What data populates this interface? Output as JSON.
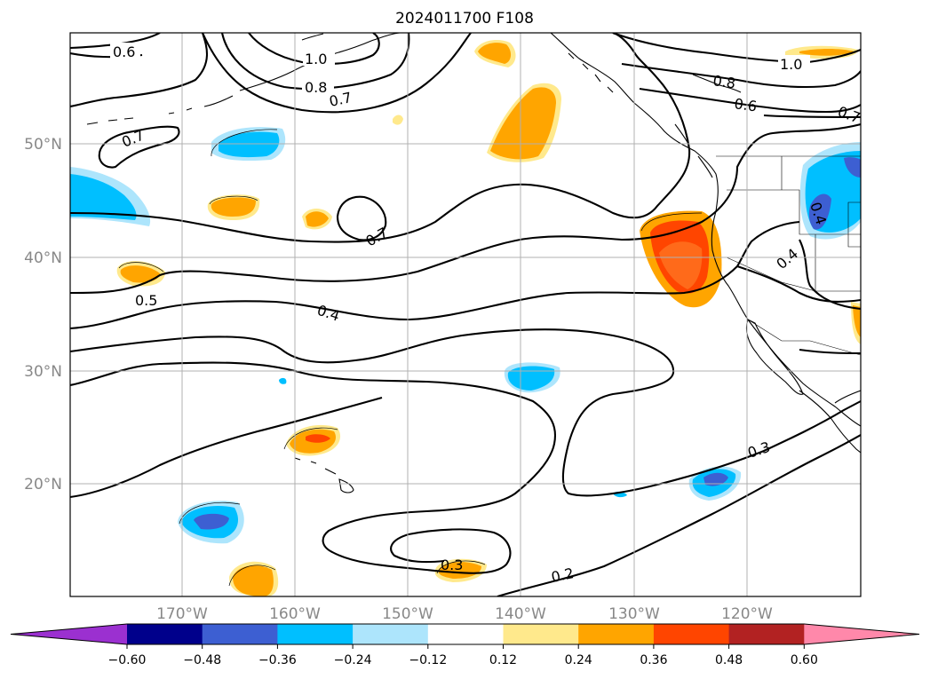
{
  "title": "2024011700 F108",
  "map": {
    "lat_labels": [
      "50°N",
      "40°N",
      "30°N",
      "20°N"
    ],
    "lon_labels": [
      "170°W",
      "160°W",
      "150°W",
      "140°W",
      "130°W",
      "120°W"
    ],
    "contour_labels": [
      "0.6",
      "1.0",
      "0.8",
      "0.7",
      "0.7",
      "0.7",
      "0.5",
      "0.4",
      "0.3",
      "0.3",
      "0.2",
      "1.0",
      "0.8",
      "0.6",
      "0.7",
      "0.4",
      "0.4"
    ]
  },
  "colorbar": {
    "ticks": [
      "−0.60",
      "−0.48",
      "−0.36",
      "−0.24",
      "−0.12",
      "0.12",
      "0.24",
      "0.36",
      "0.48",
      "0.60"
    ],
    "colors": [
      "#9b30d0",
      "#00008b",
      "#3d5fd2",
      "#00bfff",
      "#ade5fc",
      "#ffffff",
      "#ffe98c",
      "#ffa500",
      "#ff4500",
      "#b22222",
      "#ff88aa"
    ]
  },
  "palette": {
    "light_blue": "#ade5fc",
    "cyan": "#00bfff",
    "royal_blue": "#3d5fd2",
    "yellow": "#ffe98c",
    "orange": "#ffa500",
    "red_orange": "#ff4500"
  }
}
